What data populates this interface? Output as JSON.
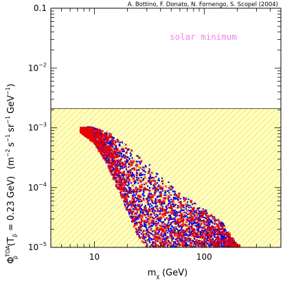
{
  "chart_data": {
    "type": "scatter",
    "credit": "A. Bottino, F. Donato, N. Fornengo, S. Scopel (2004)",
    "annotation": "solar minimum",
    "xlabel": {
      "base": "m",
      "sub": "χ",
      "unit": "(GeV)"
    },
    "ylabel": {
      "phi": "Φ",
      "phi_sub": "p̄",
      "phi_sup": "TOA",
      "cond_open": "(T",
      "cond_sub": "p̄",
      "cond_value": "= 0.23 GeV)",
      "unit_open": "(m",
      "unit_m_exp": "−2",
      "unit_s": "s",
      "unit_s_exp": "−1",
      "unit_sr": "sr",
      "unit_sr_exp": "−1",
      "unit_gev": "GeV",
      "unit_gev_exp": "−1",
      "unit_close": ")"
    },
    "x_scale": "log",
    "y_scale": "log",
    "xlim": [
      4,
      500
    ],
    "ylim": [
      1e-05,
      0.1
    ],
    "x_ticks": [
      {
        "value": 10,
        "label": "10"
      },
      {
        "value": 100,
        "label": "100"
      }
    ],
    "y_ticks": [
      {
        "value": 1e-05,
        "base": "10",
        "exp": "−5"
      },
      {
        "value": 0.0001,
        "base": "10",
        "exp": "−4"
      },
      {
        "value": 0.001,
        "base": "10",
        "exp": "−3"
      },
      {
        "value": 0.01,
        "base": "10",
        "exp": "−2"
      },
      {
        "value": 0.1,
        "label": "0.1"
      }
    ],
    "excluded_region": {
      "y_max": 0.0021,
      "fill": "#ffffc0",
      "hatch": "#e8d860"
    },
    "series": [
      {
        "marker": "dot",
        "color": "#0000ee"
      },
      {
        "marker": "cross",
        "color": "#ee0000"
      }
    ],
    "envelope": {
      "upper": [
        [
          7.5,
          0.001
        ],
        [
          9,
          0.00105
        ],
        [
          11,
          0.00098
        ],
        [
          14,
          0.0008
        ],
        [
          18,
          0.0006
        ],
        [
          25,
          0.00035
        ],
        [
          40,
          0.00017
        ],
        [
          60,
          8e-05
        ],
        [
          100,
          4.5e-05
        ],
        [
          150,
          2.5e-05
        ],
        [
          200,
          1.1e-05
        ]
      ],
      "lower": [
        [
          7.5,
          0.00085
        ],
        [
          10,
          0.00055
        ],
        [
          13,
          0.00025
        ],
        [
          16,
          0.0001
        ],
        [
          20,
          4e-05
        ],
        [
          25,
          1.5e-05
        ],
        [
          30,
          1e-05
        ]
      ],
      "x_max": 210,
      "n_blue": 2600,
      "n_red": 1300
    }
  }
}
